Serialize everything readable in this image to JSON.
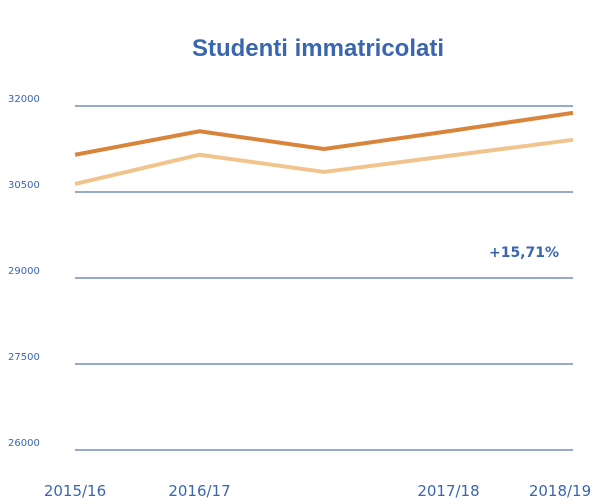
{
  "chart_data": {
    "type": "line",
    "title": "Studenti immatricolati",
    "categories": [
      "2015/16",
      "2016/17",
      null,
      "2017/18",
      "2018/19"
    ],
    "series": [
      {
        "color": "#d9843b",
        "values": [
          31150,
          31560,
          31250,
          31560,
          31880
        ]
      },
      {
        "color": "#f2c48d",
        "values": [
          30640,
          31150,
          30850,
          31130,
          31410
        ]
      }
    ],
    "ylim": [
      26000,
      32000
    ],
    "yticks": [
      26000,
      27500,
      29000,
      30500,
      32000
    ],
    "grid": true,
    "grid_color": "#2f5597",
    "annotation": "+15,71%"
  }
}
